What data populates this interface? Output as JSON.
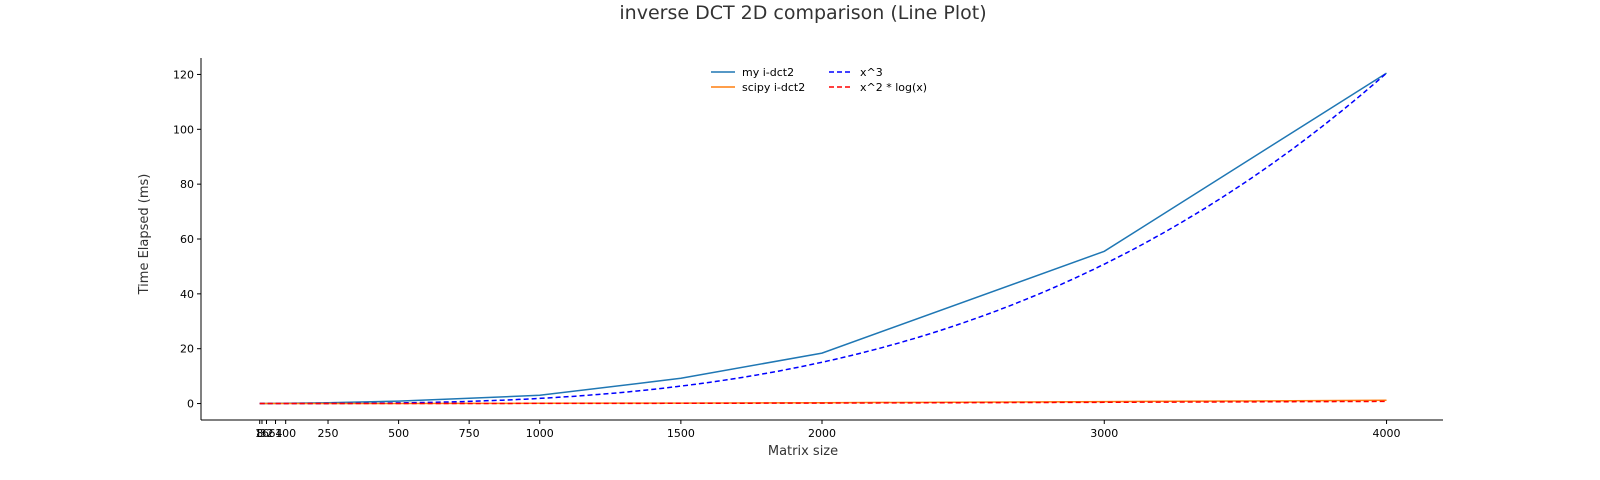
{
  "chart_data": {
    "type": "line",
    "title": "inverse DCT 2D comparison (Line Plot)",
    "xlabel": "Matrix size",
    "ylabel": "Time Elapsed (ms)",
    "xlim": [
      -200,
      4200
    ],
    "ylim": [
      -6,
      126
    ],
    "x_ticks": [
      8,
      16,
      32,
      64,
      100,
      250,
      500,
      750,
      1000,
      1500,
      2000,
      3000,
      4000
    ],
    "x_tick_labels": [
      "8",
      "16",
      "32",
      "64",
      "100",
      "250",
      "500",
      "750",
      "1000",
      "1500",
      "2000",
      "3000",
      "4000"
    ],
    "y_ticks": [
      0,
      20,
      40,
      60,
      80,
      100,
      120
    ],
    "grid": false,
    "legend_position": "top-center",
    "legend_columns": 2,
    "x": [
      8,
      16,
      32,
      64,
      100,
      250,
      500,
      750,
      1000,
      1500,
      2000,
      3000,
      4000
    ],
    "series": [
      {
        "name": "my i-dct2",
        "color": "#1f77b4",
        "dash": "solid",
        "values": [
          0.01,
          0.02,
          0.03,
          0.05,
          0.08,
          0.3,
          0.9,
          1.9,
          3.0,
          9.2,
          18.4,
          55.5,
          120.5
        ]
      },
      {
        "name": "scipy i-dct2",
        "color": "#ff7f0e",
        "dash": "solid",
        "values": [
          0.0,
          0.0,
          0.0,
          0.0,
          0.0,
          0.01,
          0.02,
          0.05,
          0.08,
          0.18,
          0.3,
          0.7,
          1.2
        ]
      },
      {
        "name": "x^3",
        "color": "#0000ff",
        "dash": "dashed",
        "formula": "x^3 scaled to 120.5 at x = 4000",
        "values": [
          0.0,
          0.0,
          0.0,
          0.0,
          0.0,
          0.03,
          0.24,
          0.79,
          1.88,
          6.35,
          15.06,
          50.84,
          120.5
        ]
      },
      {
        "name": "x^2 * log(x)",
        "color": "#ff0000",
        "dash": "dashed",
        "formula": "x^2 log(x) scaled to 0.8 at x = 4000",
        "values": [
          0.0,
          0.0,
          0.0,
          0.0,
          0.0,
          0.0,
          0.01,
          0.03,
          0.04,
          0.1,
          0.18,
          0.44,
          0.8
        ]
      }
    ]
  }
}
